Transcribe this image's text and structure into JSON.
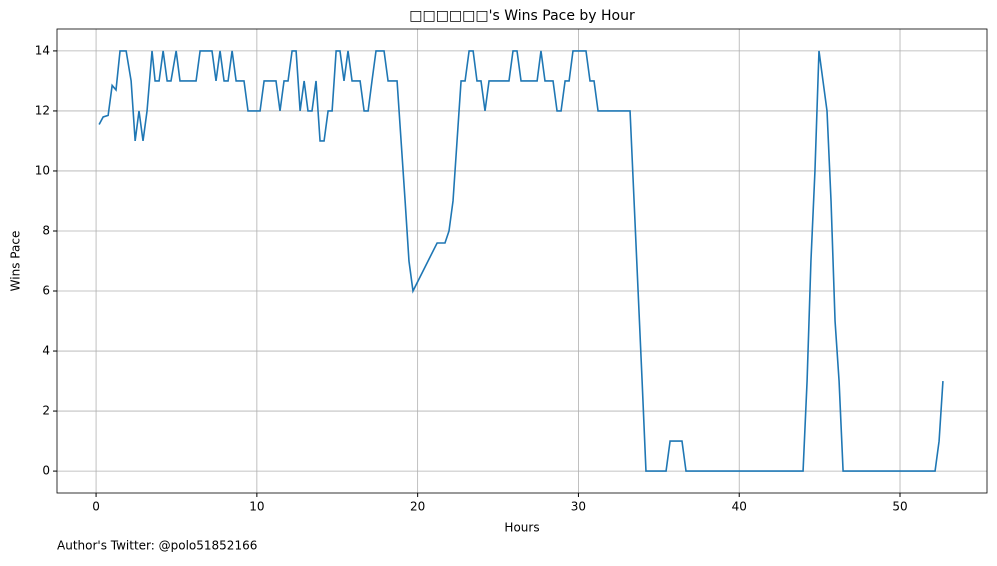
{
  "chart_data": {
    "type": "line",
    "title": "□□□□□□'s Wins Pace by Hour",
    "xlabel": "Hours",
    "ylabel": "Wins Pace",
    "annotation": "Author's Twitter: @polo51852166",
    "xlim": [
      -2.43,
      55.41
    ],
    "ylim": [
      -0.73,
      14.73
    ],
    "xticks": [
      0,
      10,
      20,
      30,
      40,
      50
    ],
    "yticks": [
      0,
      2,
      4,
      6,
      8,
      10,
      12,
      14
    ],
    "grid": true,
    "series": [
      {
        "color": "#1f77b4",
        "x": [
          0.19,
          0.44,
          0.75,
          1.0,
          1.24,
          1.49,
          1.87,
          2.18,
          2.43,
          2.67,
          2.92,
          3.17,
          3.48,
          3.67,
          3.92,
          4.17,
          4.42,
          4.66,
          4.98,
          5.22,
          6.22,
          6.47,
          7.21,
          7.46,
          7.71,
          7.96,
          8.21,
          8.46,
          8.71,
          9.2,
          9.45,
          10.2,
          10.45,
          11.19,
          11.44,
          11.69,
          11.94,
          12.19,
          12.44,
          12.69,
          12.94,
          13.18,
          13.43,
          13.68,
          13.93,
          14.18,
          14.43,
          14.68,
          14.93,
          15.17,
          15.42,
          15.67,
          15.92,
          16.42,
          16.67,
          16.92,
          17.16,
          17.41,
          17.91,
          18.16,
          18.72,
          18.97,
          19.22,
          19.46,
          19.71,
          21.21,
          21.7,
          21.95,
          22.2,
          22.45,
          22.7,
          22.95,
          23.2,
          23.45,
          23.69,
          23.94,
          24.19,
          24.44,
          25.68,
          25.93,
          26.18,
          26.43,
          27.43,
          27.67,
          27.92,
          28.42,
          28.67,
          28.92,
          29.17,
          29.42,
          29.66,
          30.47,
          30.72,
          30.97,
          31.22,
          33.21,
          33.46,
          33.71,
          33.96,
          34.2,
          35.45,
          35.7,
          36.44,
          36.69,
          43.97,
          44.22,
          44.46,
          44.71,
          44.96,
          45.21,
          45.46,
          45.71,
          45.96,
          46.21,
          46.46,
          52.18,
          52.43,
          52.67
        ],
        "values": [
          11.55,
          11.8,
          11.85,
          12.85,
          12.7,
          14,
          14,
          13,
          11,
          12,
          11,
          12,
          14,
          13,
          13,
          14,
          13,
          13,
          14,
          13,
          13,
          14,
          14,
          13,
          14,
          13,
          13,
          14,
          13,
          13,
          12,
          12,
          13,
          13,
          12,
          13,
          13,
          14,
          14,
          12,
          13,
          12,
          12,
          13,
          11,
          11,
          12,
          12,
          14,
          14,
          13,
          14,
          13,
          13,
          12,
          12,
          13,
          14,
          14,
          13,
          13,
          11,
          9,
          7,
          6,
          7.6,
          7.6,
          8,
          9,
          11,
          13,
          13,
          14,
          14,
          13,
          13,
          12,
          13,
          13,
          14,
          14,
          13,
          13,
          14,
          13,
          13,
          12,
          12,
          13,
          13,
          14,
          14,
          13,
          13,
          12,
          12,
          9,
          6,
          3,
          0,
          0,
          1,
          1,
          0,
          0,
          3,
          7,
          10,
          14,
          13,
          12,
          9,
          5,
          3,
          0,
          0,
          1,
          3
        ]
      }
    ]
  }
}
